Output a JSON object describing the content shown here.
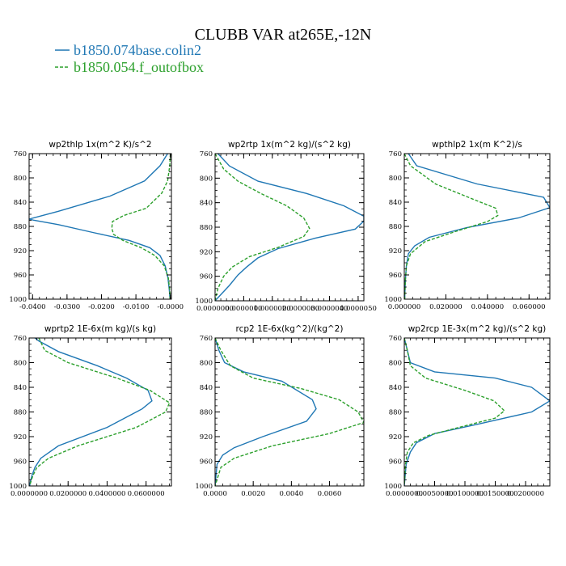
{
  "title": "CLUBB VAR at265E,-12N",
  "legend": [
    {
      "name": "b1850.074base.colin2",
      "color": "#1f77b4"
    },
    {
      "name": "b1850.054.f_outofbox",
      "color": "#2ca02c"
    }
  ],
  "chart_data": [
    {
      "type": "line",
      "title": "wp2thlp  1x(m^2 K)/s^2",
      "xlim": [
        -0.041,
        0.0003
      ],
      "ylim": [
        760,
        1000
      ],
      "xtick_values": [
        -0.04,
        -0.03,
        -0.02,
        -0.01,
        0.0
      ],
      "xtick_labels": [
        "-0.0400",
        "-0.0300",
        "-0.0200",
        "-0.0100",
        "-0.0000"
      ],
      "ytick_values": [
        760,
        800,
        840,
        880,
        920,
        960,
        1000
      ],
      "ytick_labels": [
        "760",
        "800",
        "840",
        "880",
        "920",
        "960",
        "1000"
      ],
      "series": [
        {
          "name": "b1850.074base.colin2",
          "x": [
            -0.0008,
            -0.003,
            -0.0075,
            -0.0175,
            -0.0325,
            -0.041,
            -0.0395,
            -0.0325,
            -0.0225,
            -0.012,
            -0.006,
            -0.003,
            -0.0015,
            -0.0007,
            -0.0003,
            -0.0001
          ],
          "y": [
            760,
            780,
            805,
            830,
            855,
            868,
            870,
            877,
            890,
            903,
            915,
            928,
            945,
            965,
            985,
            1000
          ]
        },
        {
          "name": "b1850.054.f_outofbox",
          "x": [
            0.0,
            -0.0002,
            -0.0008,
            -0.0025,
            -0.007,
            -0.0135,
            -0.0168,
            -0.017,
            -0.0165,
            -0.0138,
            -0.0085,
            -0.0045,
            -0.0018,
            -0.0006,
            -0.0002,
            -0.0001
          ],
          "y": [
            760,
            780,
            805,
            825,
            850,
            862,
            872,
            883,
            893,
            903,
            915,
            928,
            945,
            965,
            985,
            1000
          ]
        }
      ]
    },
    {
      "type": "line",
      "title": "wp2rtp  1x(m^2 kg)/(s^2 kg)",
      "xlim": [
        0.0,
        5.2e-06
      ],
      "ylim": [
        760,
        1000
      ],
      "xtick_values": [
        0.0,
        1e-06,
        2e-06,
        3e-06,
        4e-06,
        5e-06
      ],
      "xtick_labels": [
        "0.0000000",
        "0.0000010",
        "0.0000020",
        "0.0000030",
        "0.0000040",
        "0.0000050"
      ],
      "ytick_values": [
        760,
        800,
        840,
        880,
        920,
        960,
        1000
      ],
      "ytick_labels": [
        "760",
        "800",
        "840",
        "880",
        "920",
        "960",
        "1000"
      ],
      "series": [
        {
          "name": "b1850.074base.colin2",
          "x": [
            1e-07,
            5e-07,
            1.5e-06,
            3.2e-06,
            4.5e-06,
            5.2e-06,
            5.2e-06,
            4.9e-06,
            3.5e-06,
            2.2e-06,
            1.5e-06,
            1.1e-06,
            8e-07,
            5e-07,
            2e-07,
            0.0
          ],
          "y": [
            760,
            780,
            805,
            825,
            845,
            862,
            870,
            883,
            898,
            915,
            930,
            945,
            958,
            975,
            990,
            1000
          ]
        },
        {
          "name": "b1850.054.f_outofbox",
          "x": [
            0.0,
            3e-07,
            8e-07,
            1.6e-06,
            2.5e-06,
            3.1e-06,
            3.3e-06,
            3.1e-06,
            2.2e-06,
            1.2e-06,
            6e-07,
            3e-07,
            1e-07,
            0.0
          ],
          "y": [
            760,
            785,
            805,
            825,
            845,
            865,
            882,
            895,
            913,
            928,
            945,
            960,
            980,
            1000
          ]
        }
      ]
    },
    {
      "type": "line",
      "title": "wpthlp2  1x(m K^2)/s",
      "xlim": [
        0.0,
        0.07
      ],
      "ylim": [
        760,
        1000
      ],
      "xtick_values": [
        0.0,
        0.02,
        0.04,
        0.06
      ],
      "xtick_labels": [
        "0.000000",
        "0.020000",
        "0.040000",
        "0.060000"
      ],
      "ytick_values": [
        760,
        800,
        840,
        880,
        920,
        960,
        1000
      ],
      "ytick_labels": [
        "760",
        "800",
        "840",
        "880",
        "920",
        "960",
        "1000"
      ],
      "series": [
        {
          "name": "b1850.074base.colin2",
          "x": [
            0.002,
            0.006,
            0.035,
            0.067,
            0.07,
            0.055,
            0.03,
            0.012,
            0.005,
            0.002,
            0.001,
            0.0005,
            0.0002
          ],
          "y": [
            760,
            780,
            810,
            832,
            849,
            866,
            882,
            898,
            912,
            925,
            945,
            970,
            1000
          ]
        },
        {
          "name": "b1850.054.f_outofbox",
          "x": [
            0.0,
            0.003,
            0.015,
            0.033,
            0.044,
            0.045,
            0.04,
            0.025,
            0.01,
            0.003,
            0.001,
            0.0005,
            0.0002
          ],
          "y": [
            760,
            780,
            810,
            835,
            850,
            862,
            872,
            888,
            905,
            925,
            945,
            970,
            1000
          ]
        }
      ]
    },
    {
      "type": "line",
      "title": "wprtp2  1E-6x(m kg)/(s kg)",
      "xlim": [
        0.0,
        0.073
      ],
      "ylim": [
        760,
        1000
      ],
      "xtick_values": [
        0.0,
        0.02,
        0.04,
        0.06
      ],
      "xtick_labels": [
        "0.0000000",
        "0.0200000",
        "0.0400000",
        "0.0600000"
      ],
      "ytick_values": [
        760,
        800,
        840,
        880,
        920,
        960,
        1000
      ],
      "ytick_labels": [
        "760",
        "800",
        "840",
        "880",
        "920",
        "960",
        "1000"
      ],
      "series": [
        {
          "name": "b1850.074base.colin2",
          "x": [
            0.003,
            0.005,
            0.015,
            0.035,
            0.05,
            0.061,
            0.063,
            0.058,
            0.04,
            0.015,
            0.006,
            0.003,
            0.0015,
            0.0007,
            0.0003
          ],
          "y": [
            760,
            765,
            782,
            805,
            825,
            845,
            862,
            875,
            905,
            935,
            955,
            970,
            983,
            992,
            1000
          ]
        },
        {
          "name": "b1850.054.f_outofbox",
          "x": [
            0.005,
            0.008,
            0.02,
            0.045,
            0.062,
            0.072,
            0.07,
            0.055,
            0.025,
            0.01,
            0.004,
            0.002,
            0.001,
            0.0003
          ],
          "y": [
            760,
            780,
            800,
            825,
            845,
            865,
            880,
            905,
            935,
            955,
            970,
            983,
            992,
            1000
          ]
        }
      ]
    },
    {
      "type": "line",
      "title": "rcp2  1E-6x(kg^2)/(kg^2)",
      "xlim": [
        0.0,
        0.0078
      ],
      "ylim": [
        760,
        1000
      ],
      "xtick_values": [
        0.0,
        0.002,
        0.004,
        0.006
      ],
      "xtick_labels": [
        "0.0000",
        "0.0020",
        "0.0040",
        "0.0060"
      ],
      "ytick_values": [
        760,
        800,
        840,
        880,
        920,
        960,
        1000
      ],
      "ytick_labels": [
        "760",
        "800",
        "840",
        "880",
        "920",
        "960",
        "1000"
      ],
      "series": [
        {
          "name": "b1850.074base.colin2",
          "x": [
            0.0,
            0.0002,
            0.0005,
            0.0015,
            0.0035,
            0.0051,
            0.0053,
            0.0048,
            0.0025,
            0.001,
            0.0004,
            0.0001,
            0.0
          ],
          "y": [
            760,
            780,
            800,
            815,
            830,
            860,
            875,
            895,
            920,
            938,
            950,
            965,
            1000
          ]
        },
        {
          "name": "b1850.054.f_outofbox",
          "x": [
            0.0,
            0.0003,
            0.0008,
            0.002,
            0.0045,
            0.0065,
            0.0075,
            0.0078,
            0.006,
            0.003,
            0.001,
            0.0003,
            0.0
          ],
          "y": [
            760,
            780,
            805,
            825,
            842,
            860,
            880,
            897,
            915,
            935,
            955,
            970,
            1000
          ]
        }
      ]
    },
    {
      "type": "line",
      "title": "wp2rcp  1E-3x(m^2 kg)/(s^2 kg)",
      "xlim": [
        0.0,
        0.024
      ],
      "ylim": [
        760,
        1000
      ],
      "xtick_values": [
        0.0,
        0.005,
        0.01,
        0.015,
        0.02
      ],
      "xtick_labels": [
        "0.0000000",
        "0.0050000",
        "0.0100000",
        "0.0150000",
        "0.0200000"
      ],
      "ytick_values": [
        760,
        800,
        840,
        880,
        920,
        960,
        1000
      ],
      "ytick_labels": [
        "760",
        "800",
        "840",
        "880",
        "920",
        "960",
        "1000"
      ],
      "series": [
        {
          "name": "b1850.074base.colin2",
          "x": [
            0.0,
            0.0005,
            0.001,
            0.005,
            0.015,
            0.021,
            0.024,
            0.021,
            0.012,
            0.005,
            0.002,
            0.001,
            0.0003,
            0.0
          ],
          "y": [
            760,
            780,
            800,
            815,
            825,
            840,
            862,
            880,
            900,
            915,
            930,
            945,
            965,
            1000
          ]
        },
        {
          "name": "b1850.054.f_outofbox",
          "x": [
            0.0,
            0.0005,
            0.001,
            0.0035,
            0.01,
            0.0148,
            0.0165,
            0.015,
            0.009,
            0.004,
            0.0015,
            0.0005,
            0.0002,
            0.0
          ],
          "y": [
            760,
            780,
            805,
            825,
            845,
            862,
            878,
            890,
            905,
            918,
            930,
            945,
            965,
            1000
          ]
        }
      ]
    }
  ]
}
